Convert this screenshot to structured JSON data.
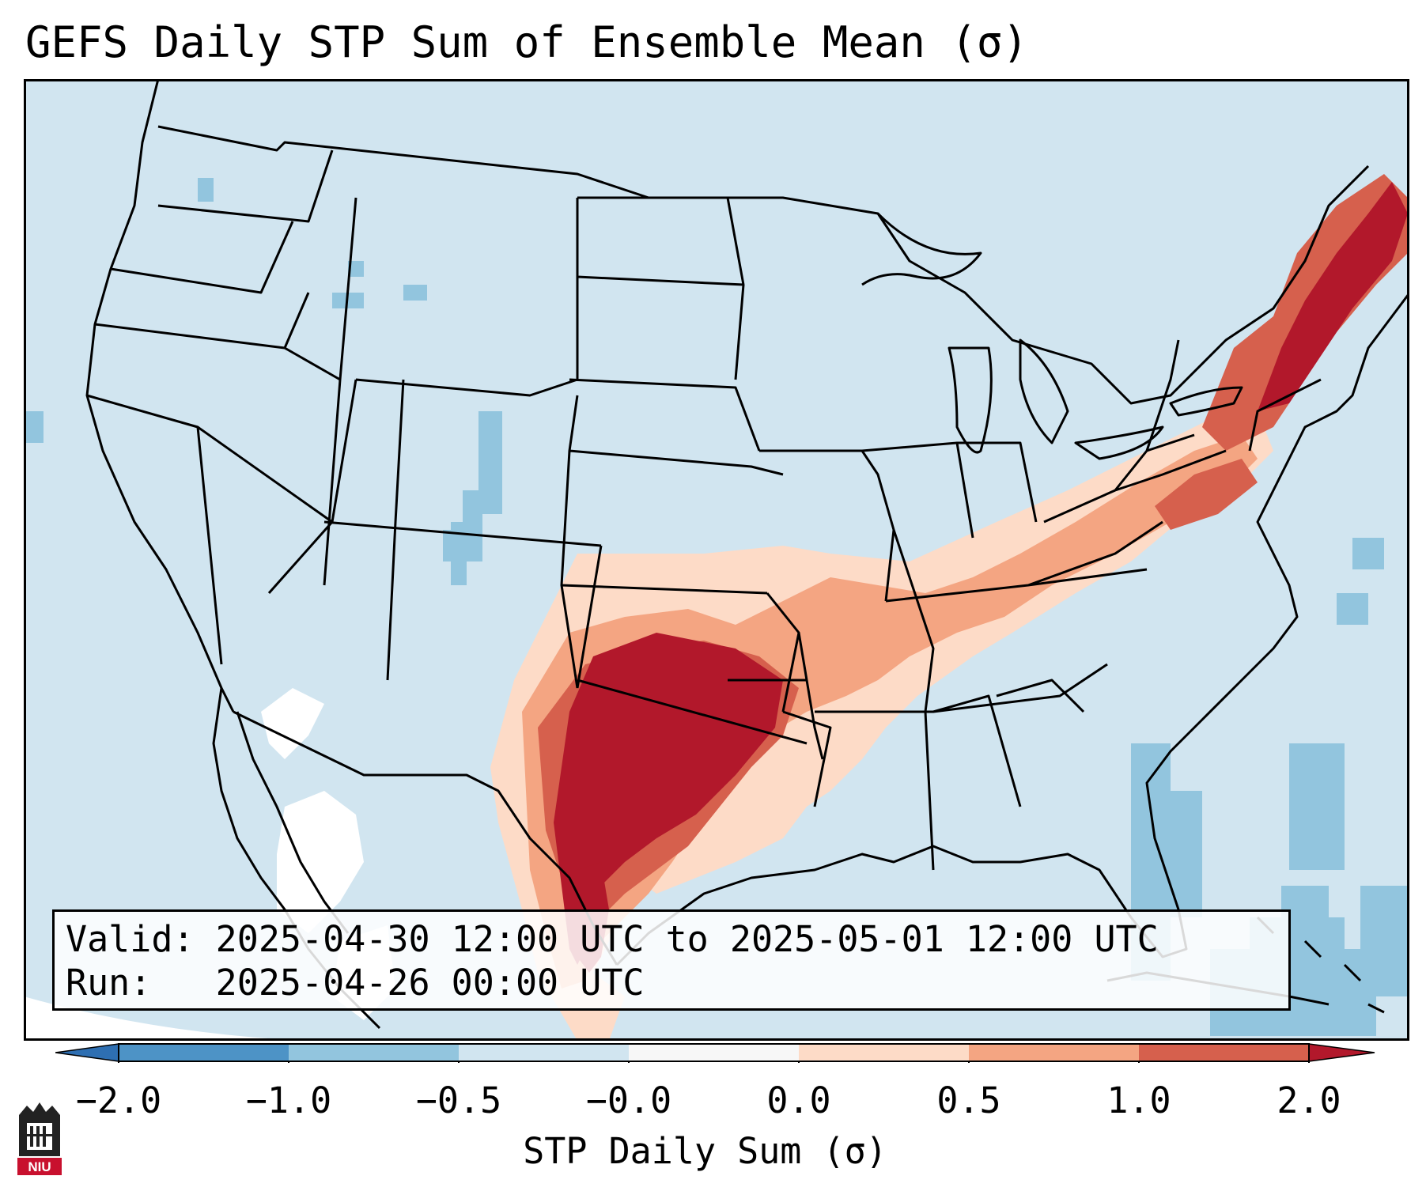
{
  "title": "GEFS Daily STP Sum of Ensemble Mean (σ)",
  "info_box": {
    "valid_label": "Valid:",
    "valid_value": "2025-04-30 12:00 UTC to 2025-05-01 12:00 UTC",
    "run_label": "Run:",
    "run_value": "2025-04-26 00:00 UTC"
  },
  "colorbar": {
    "label": "STP Daily Sum (σ)",
    "ticks": [
      "−2.0",
      "−1.0",
      "−0.5",
      "−0.0",
      "0.0",
      "0.5",
      "1.0",
      "2.0"
    ],
    "colors": {
      "lt_-2": "#2e6fb2",
      "-2_-1": "#4d93c6",
      "-1_-0.5": "#92c5de",
      "-0.5_0": "#d1e5f0",
      "0_0.0": "#f7f7f7",
      "0_0.5": "#fddbc7",
      "0.5_1": "#f4a582",
      "1_2": "#d6604d",
      "gt_2": "#b2182b"
    }
  },
  "map": {
    "background_color": "#d1e5f0",
    "region": "Contiguous United States",
    "features": [
      "state-borders",
      "coastlines",
      "country-borders"
    ]
  },
  "logo": {
    "text": "NIU",
    "color": "#c8102e"
  }
}
